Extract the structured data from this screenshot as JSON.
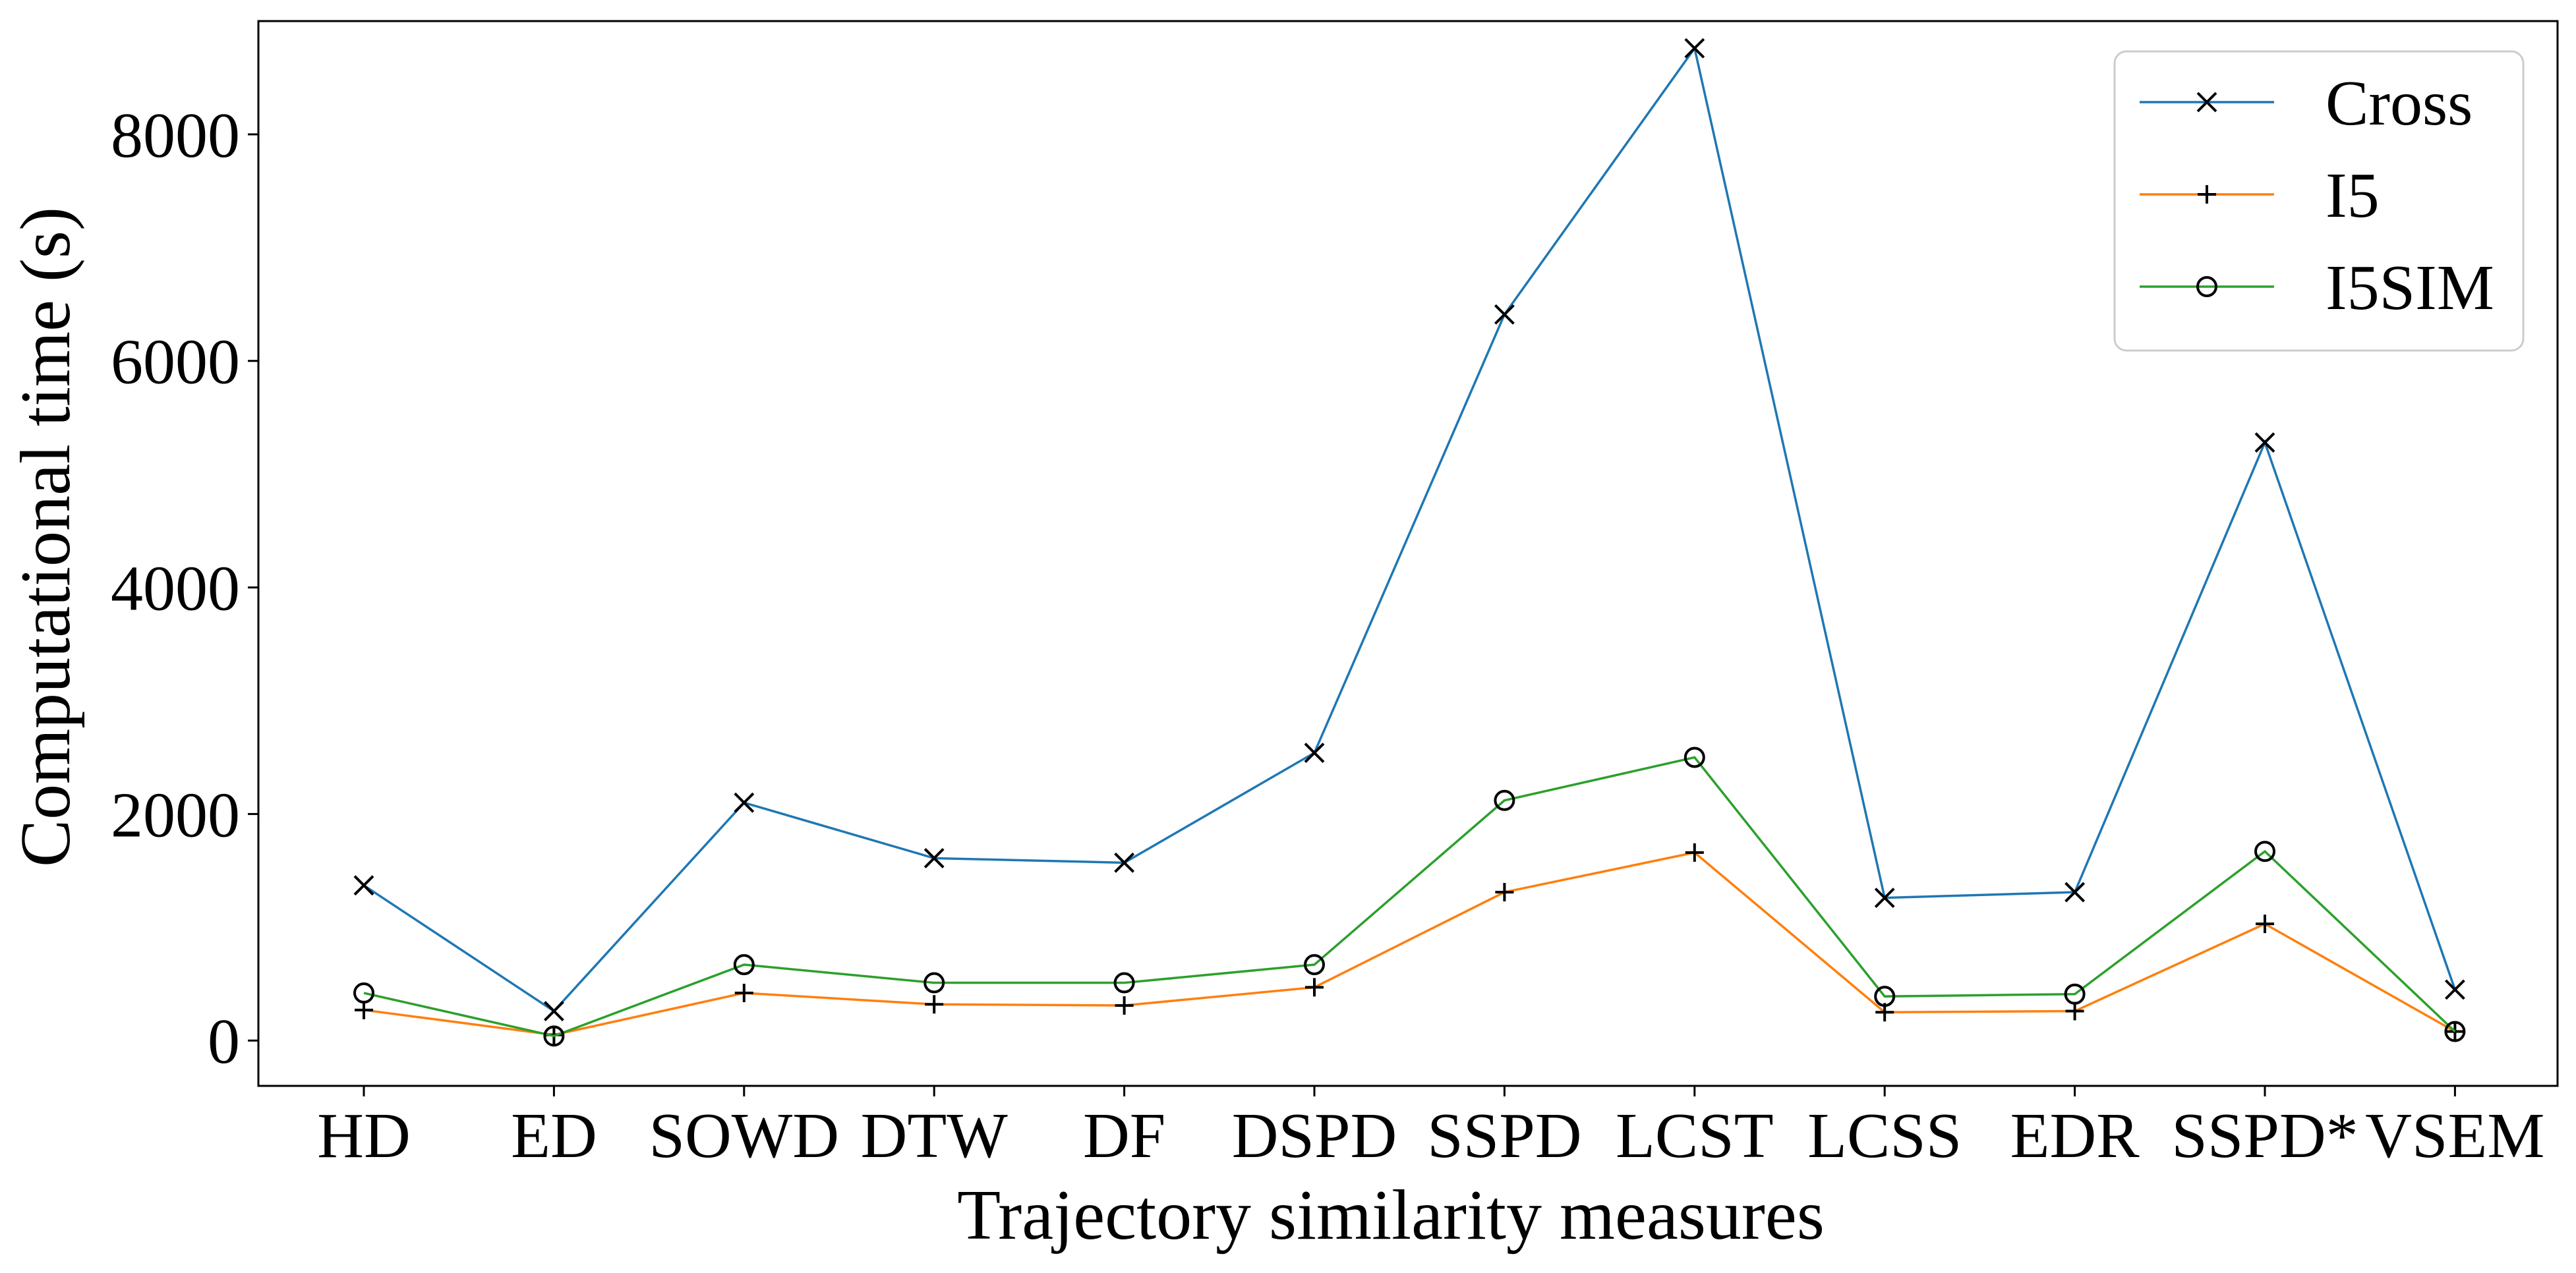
{
  "chart_data": {
    "type": "line",
    "title": "",
    "xlabel": "Trajectory similarity measures",
    "ylabel": "Computational time (s)",
    "categories": [
      "HD",
      "ED",
      "SOWD",
      "DTW",
      "DF",
      "DSPD",
      "SSPD",
      "LCST",
      "LCSS",
      "EDR",
      "SSPD*",
      "VSEM"
    ],
    "ylim": [
      -400,
      9000
    ],
    "yticks": [
      0,
      2000,
      4000,
      6000,
      8000
    ],
    "ytick_labels": [
      "0",
      "2000",
      "4000",
      "6000",
      "8000"
    ],
    "grid": false,
    "legend": "top-right",
    "series": [
      {
        "name": "Cross",
        "color": "#1f77b4",
        "marker": "x",
        "values": [
          1370,
          260,
          2100,
          1610,
          1570,
          2540,
          6410,
          8760,
          1260,
          1310,
          5280,
          450
        ]
      },
      {
        "name": "I5",
        "color": "#ff7f0e",
        "marker": "plus",
        "values": [
          270,
          50,
          420,
          320,
          310,
          470,
          1310,
          1660,
          250,
          260,
          1030,
          80
        ]
      },
      {
        "name": "I5SIM",
        "color": "#2ca02c",
        "marker": "circle",
        "values": [
          420,
          40,
          670,
          510,
          510,
          670,
          2120,
          2500,
          390,
          410,
          1670,
          80
        ]
      }
    ]
  }
}
